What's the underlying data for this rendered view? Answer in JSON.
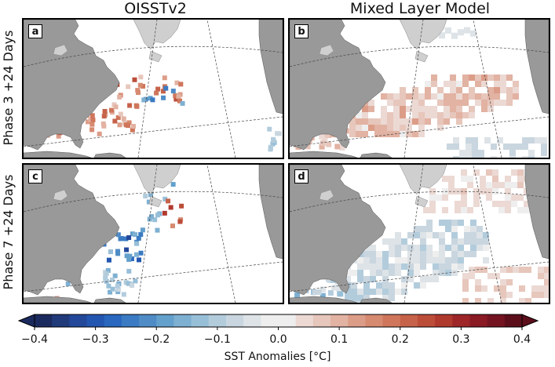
{
  "columns": [
    {
      "title": "OISSTv2"
    },
    {
      "title": "Mixed Layer Model"
    }
  ],
  "rows": [
    {
      "label": "Phase 3 +24 Days"
    },
    {
      "label": "Phase 7 +24 Days"
    }
  ],
  "panels": [
    {
      "letter": "a",
      "pattern": "obs-warm"
    },
    {
      "letter": "b",
      "pattern": "model-warm"
    },
    {
      "letter": "c",
      "pattern": "obs-cool"
    },
    {
      "letter": "d",
      "pattern": "model-cool"
    }
  ],
  "colorbar": {
    "label": "SST Anomalies [°C]",
    "min": -0.4,
    "max": 0.4,
    "ticks": [
      {
        "value": -0.4,
        "label": "−0.4"
      },
      {
        "value": -0.3,
        "label": "−0.3"
      },
      {
        "value": -0.2,
        "label": "−0.2"
      },
      {
        "value": -0.1,
        "label": "−0.1"
      },
      {
        "value": 0.0,
        "label": "0.0"
      },
      {
        "value": 0.1,
        "label": "0.1"
      },
      {
        "value": 0.2,
        "label": "0.2"
      },
      {
        "value": 0.3,
        "label": "0.3"
      },
      {
        "value": 0.4,
        "label": "0.4"
      }
    ],
    "colors": [
      "#1b2a5e",
      "#203a7a",
      "#23489a",
      "#2356b0",
      "#2a67bf",
      "#3a7bc3",
      "#4f8cc6",
      "#64a0cc",
      "#7eb0d2",
      "#98bfd8",
      "#b2ccdc",
      "#c9d6df",
      "#dde3e7",
      "#eeeeee",
      "#eeeeee",
      "#ecd9d4",
      "#e7c6bb",
      "#e2b2a2",
      "#dc9d88",
      "#d68a70",
      "#cf765b",
      "#c66249",
      "#bc4d39",
      "#b0392e",
      "#9e2628",
      "#8a1a24",
      "#741420",
      "#5c0f1b"
    ],
    "land_color": "#999999",
    "land_light_color": "#cfcfcf"
  }
}
